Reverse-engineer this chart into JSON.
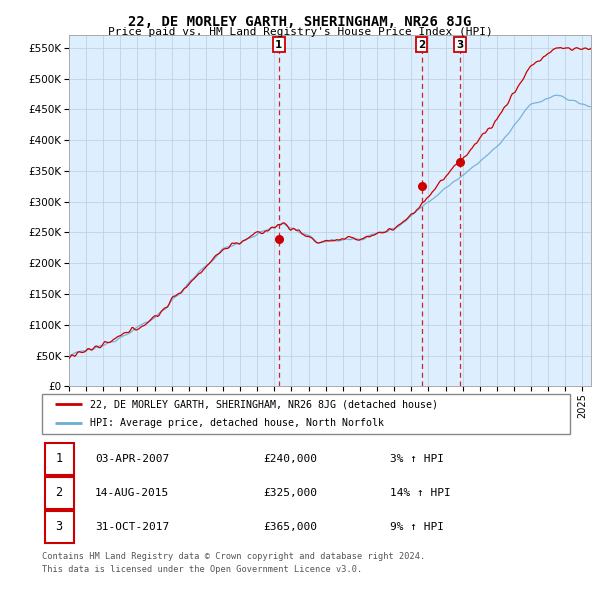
{
  "title": "22, DE MORLEY GARTH, SHERINGHAM, NR26 8JG",
  "subtitle": "Price paid vs. HM Land Registry's House Price Index (HPI)",
  "legend_line1": "22, DE MORLEY GARTH, SHERINGHAM, NR26 8JG (detached house)",
  "legend_line2": "HPI: Average price, detached house, North Norfolk",
  "transactions": [
    {
      "num": 1,
      "date": "03-APR-2007",
      "price": 240000,
      "pct": "3%",
      "dir": "↑"
    },
    {
      "num": 2,
      "date": "14-AUG-2015",
      "price": 325000,
      "pct": "14%",
      "dir": "↑"
    },
    {
      "num": 3,
      "date": "31-OCT-2017",
      "price": 365000,
      "pct": "9%",
      "dir": "↑"
    }
  ],
  "footer1": "Contains HM Land Registry data © Crown copyright and database right 2024.",
  "footer2": "This data is licensed under the Open Government Licence v3.0.",
  "hpi_color": "#6baed6",
  "price_color": "#cc0000",
  "vline_color": "#cc0000",
  "chart_bg": "#ddeeff",
  "grid_color": "#bbccdd",
  "ylim": [
    0,
    570000
  ],
  "yticks": [
    0,
    50000,
    100000,
    150000,
    200000,
    250000,
    300000,
    350000,
    400000,
    450000,
    500000,
    550000
  ],
  "trans_years": [
    2007.25,
    2015.6,
    2017.83
  ],
  "trans_prices": [
    240000,
    325000,
    365000
  ],
  "xmin": 1995,
  "xmax": 2025.5
}
